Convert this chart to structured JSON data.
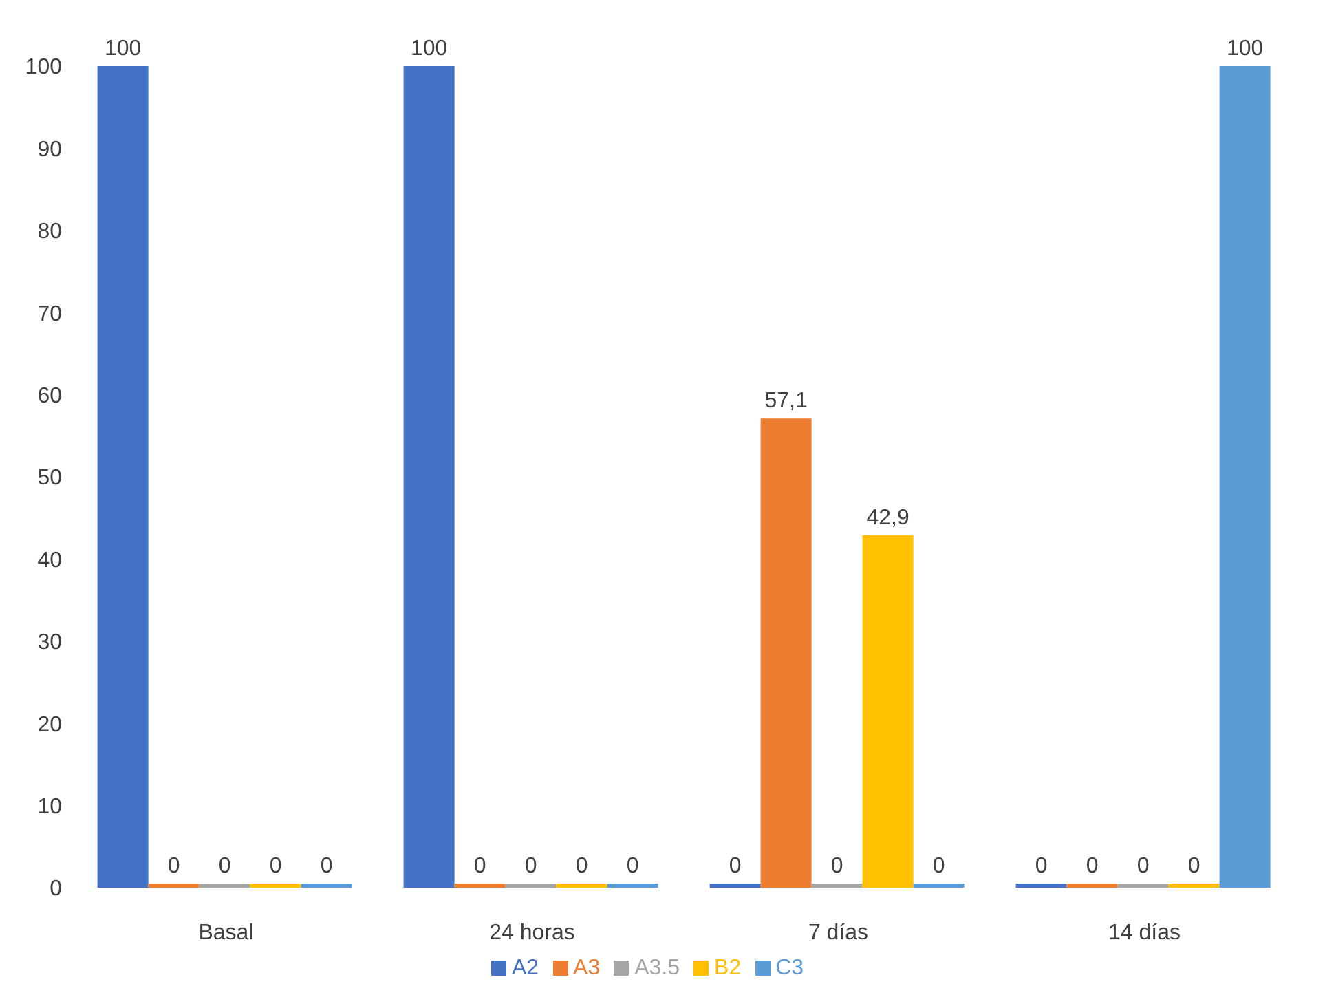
{
  "chart_data": {
    "type": "bar",
    "categories": [
      "Basal",
      "24 horas",
      "7 días",
      "14 días"
    ],
    "series": [
      {
        "name": "A2",
        "color": "#4472c4",
        "values": [
          100,
          100,
          0,
          0
        ],
        "value_labels": [
          "100",
          "100",
          "0",
          "0"
        ]
      },
      {
        "name": "A3",
        "color": "#ed7d31",
        "values": [
          0,
          0,
          57.1,
          0
        ],
        "value_labels": [
          "0",
          "0",
          "57,1",
          "0"
        ]
      },
      {
        "name": "A3.5",
        "color": "#a5a5a5",
        "values": [
          0,
          0,
          0,
          0
        ],
        "value_labels": [
          "0",
          "0",
          "0",
          "0"
        ]
      },
      {
        "name": "B2",
        "color": "#ffc000",
        "values": [
          0,
          0,
          42.9,
          0
        ],
        "value_labels": [
          "0",
          "0",
          "42,9",
          "0"
        ]
      },
      {
        "name": "C3",
        "color": "#5b9bd5",
        "values": [
          0,
          0,
          0,
          100
        ],
        "value_labels": [
          "0",
          "0",
          "0",
          "100"
        ]
      }
    ],
    "ylim": [
      0,
      100
    ],
    "yticks": [
      0,
      10,
      20,
      30,
      40,
      50,
      60,
      70,
      80,
      90,
      100
    ],
    "grid": false,
    "legend": "bottom"
  }
}
